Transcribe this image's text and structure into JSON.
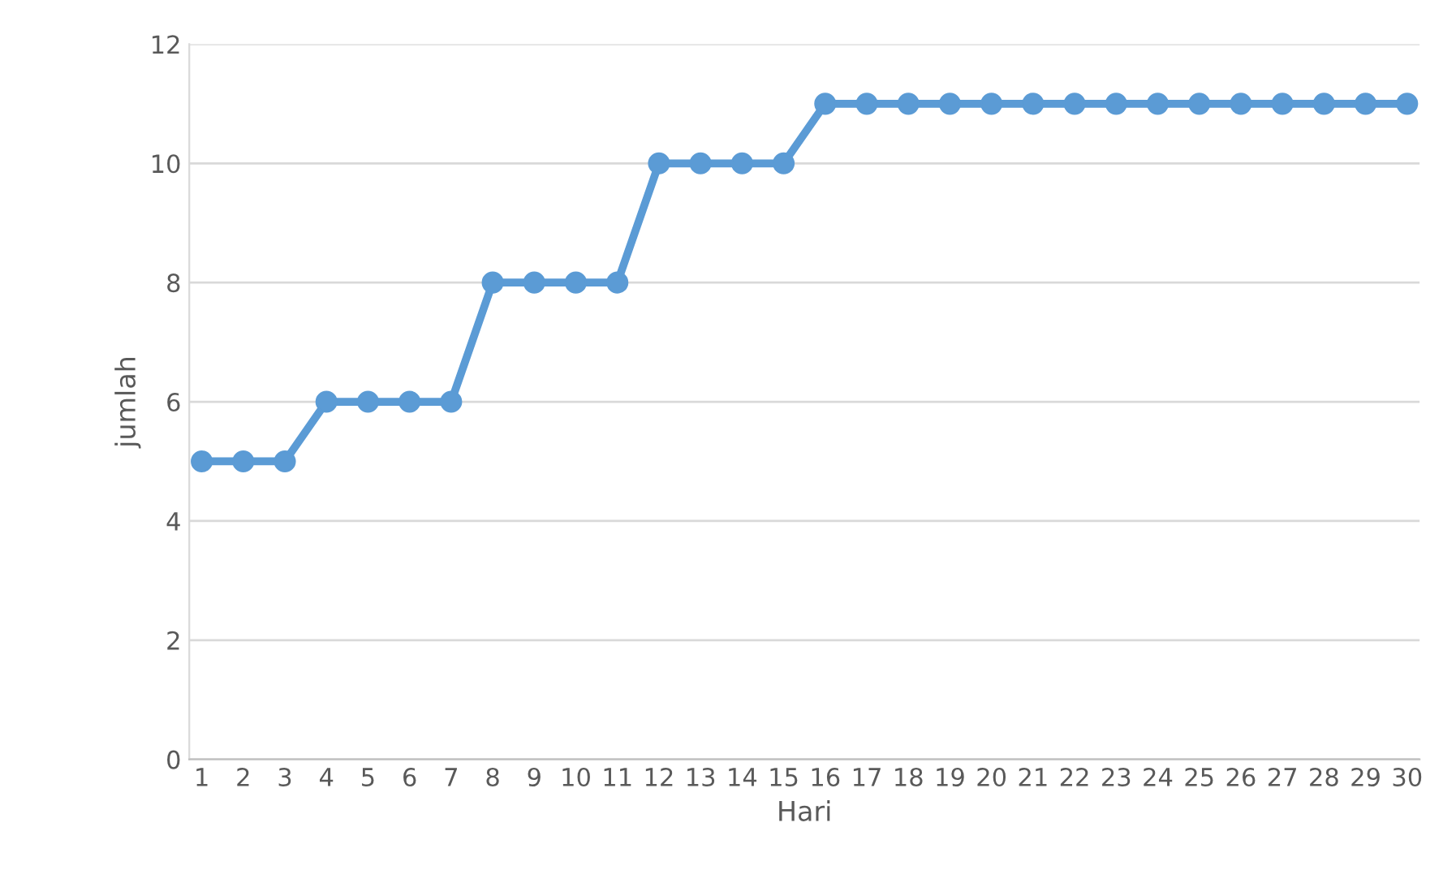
{
  "chart_data": {
    "type": "line",
    "xlabel": "Hari",
    "ylabel": "jumlah",
    "categories": [
      "1",
      "2",
      "3",
      "4",
      "5",
      "6",
      "7",
      "8",
      "9",
      "10",
      "11",
      "12",
      "13",
      "14",
      "15",
      "16",
      "17",
      "18",
      "19",
      "20",
      "21",
      "22",
      "23",
      "24",
      "25",
      "26",
      "27",
      "28",
      "29",
      "30"
    ],
    "series": [
      {
        "color": "#5b9bd5",
        "values": [
          5,
          5,
          5,
          6,
          6,
          6,
          6,
          8,
          8,
          8,
          8,
          10,
          10,
          10,
          10,
          11,
          11,
          11,
          11,
          11,
          11,
          11,
          11,
          11,
          11,
          11,
          11,
          11,
          11,
          11
        ]
      }
    ],
    "ylim": [
      0,
      12
    ],
    "yticks": [
      0,
      2,
      4,
      6,
      8,
      10,
      12
    ],
    "grid": "y",
    "marker": "circle",
    "line_style": "solid"
  }
}
